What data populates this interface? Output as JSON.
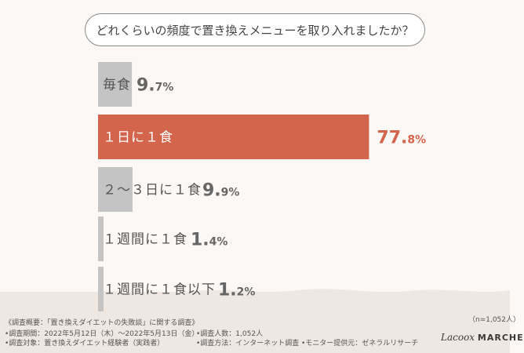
{
  "question": "どれくらいの頻度で置き換えメニューを取り入れましたか？",
  "chart_data": {
    "type": "bar",
    "orientation": "horizontal",
    "categories": [
      "毎食",
      "1日に1食",
      "2〜3日に1食",
      "1週間に1食",
      "1週間に1食以下"
    ],
    "display_labels": [
      "毎食",
      "１日に１食",
      "２〜３日に１食",
      "１週間に１食",
      "１週間に１食以下"
    ],
    "values": [
      9.7,
      77.8,
      9.9,
      1.4,
      1.2
    ],
    "value_labels_int": [
      "9.",
      "77.",
      "9.",
      "1.",
      "1."
    ],
    "value_labels_dec": [
      "7%",
      "8%",
      "9%",
      "4%",
      "2%"
    ],
    "unit": "%",
    "highlight_index": 1,
    "colors": {
      "bar": "#c4c4c4",
      "highlight": "#d4654d",
      "highlight_text": "#ffffff",
      "value": "#666666",
      "highlight_value": "#d4654d"
    }
  },
  "sample_size": "（n=1,052人）",
  "footer": {
    "title": "《調査概要：「置き換えダイエットの失敗談」に関する調査》",
    "period": "•調査期間：2022年5月12日（木）〜2022年5月13日（金）",
    "target": "•調査対象：置き換えダイエット経験者（実践者）",
    "respondents": "•調査人数：1,052人",
    "method": "•調査方法：インターネット調査",
    "provider": "•モニター提供元：ゼネラルリサーチ"
  },
  "logo": {
    "script": "Lacoox",
    "bold": "MARCHE"
  }
}
